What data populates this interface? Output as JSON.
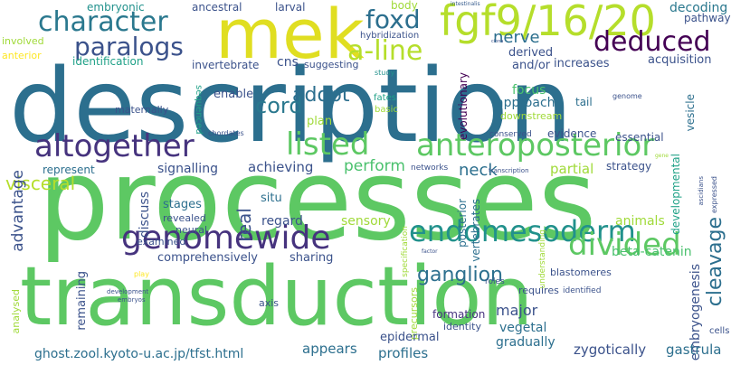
{
  "background": "#ffffff",
  "palette": [
    "#440154",
    "#46327e",
    "#365c8d",
    "#277f8e",
    "#1fa187",
    "#4ac16d",
    "#a0da39",
    "#fde725"
  ],
  "words": [
    {
      "text": "description"
    },
    {
      "text": "processes"
    },
    {
      "text": "transduction"
    },
    {
      "text": "mek"
    },
    {
      "text": "fgf9/16/20"
    },
    {
      "text": "character"
    },
    {
      "text": "foxd"
    },
    {
      "text": "paralogs"
    },
    {
      "text": "deduced"
    },
    {
      "text": "a-line"
    },
    {
      "text": "nerve"
    },
    {
      "text": "altogether"
    },
    {
      "text": "listed"
    },
    {
      "text": "anteroposterior"
    },
    {
      "text": "genomewide"
    },
    {
      "text": "endomesoderm"
    },
    {
      "text": "divided"
    },
    {
      "text": "adopt"
    },
    {
      "text": "cord"
    },
    {
      "text": "ganglion"
    },
    {
      "text": "visceral"
    },
    {
      "text": "advantage"
    },
    {
      "text": "cleavage"
    },
    {
      "text": "embryonic"
    },
    {
      "text": "ancestral"
    },
    {
      "text": "larval"
    },
    {
      "text": "body"
    },
    {
      "text": "decoding"
    },
    {
      "text": "pathway"
    },
    {
      "text": "intestinalis"
    },
    {
      "text": "hybridization"
    },
    {
      "text": "derived"
    },
    {
      "text": "involved"
    },
    {
      "text": "anterior"
    },
    {
      "text": "identification"
    },
    {
      "text": "invertebrate"
    },
    {
      "text": "cns"
    },
    {
      "text": "suggesting"
    },
    {
      "text": "study"
    },
    {
      "text": "and/or"
    },
    {
      "text": "increases"
    },
    {
      "text": "acquisition"
    },
    {
      "text": "enable"
    },
    {
      "text": "maternally"
    },
    {
      "text": "sequenced"
    },
    {
      "text": "fates"
    },
    {
      "text": "basic"
    },
    {
      "text": "focus"
    },
    {
      "text": "approach"
    },
    {
      "text": "downstream"
    },
    {
      "text": "tail"
    },
    {
      "text": "genome"
    },
    {
      "text": "plan"
    },
    {
      "text": "chordates"
    },
    {
      "text": "conserved"
    },
    {
      "text": "evidence"
    },
    {
      "text": "essential"
    },
    {
      "text": "evolutionary"
    },
    {
      "text": "vesicle"
    },
    {
      "text": "represent"
    },
    {
      "text": "signalling"
    },
    {
      "text": "achieving"
    },
    {
      "text": "perform"
    },
    {
      "text": "neck"
    },
    {
      "text": "networks"
    },
    {
      "text": "transcription"
    },
    {
      "text": "partial"
    },
    {
      "text": "strategy"
    },
    {
      "text": "gene"
    },
    {
      "text": "stages"
    },
    {
      "text": "discuss"
    },
    {
      "text": "situ"
    },
    {
      "text": "vertebrates"
    },
    {
      "text": "posterior"
    },
    {
      "text": "developmental"
    },
    {
      "text": "real"
    },
    {
      "text": "revealed"
    },
    {
      "text": "neural"
    },
    {
      "text": "regard"
    },
    {
      "text": "sensory"
    },
    {
      "text": "examined"
    },
    {
      "text": "specification"
    },
    {
      "text": "animals"
    },
    {
      "text": "understanding"
    },
    {
      "text": "factor"
    },
    {
      "text": "ascidians"
    },
    {
      "text": "expressed"
    },
    {
      "text": "beta-catenin"
    },
    {
      "text": "comprehensively"
    },
    {
      "text": "sharing"
    },
    {
      "text": "blastomeres"
    },
    {
      "text": "embryogenesis"
    },
    {
      "text": "play"
    },
    {
      "text": "remaining"
    },
    {
      "text": "roles"
    },
    {
      "text": "requires"
    },
    {
      "text": "identified"
    },
    {
      "text": "precursors"
    },
    {
      "text": "development"
    },
    {
      "text": "embryos"
    },
    {
      "text": "axis"
    },
    {
      "text": "formation"
    },
    {
      "text": "major"
    },
    {
      "text": "analysed"
    },
    {
      "text": "identity"
    },
    {
      "text": "vegetal"
    },
    {
      "text": "cells"
    },
    {
      "text": "epidermal"
    },
    {
      "text": "gradually"
    },
    {
      "text": "ghost.zool.kyoto-u.ac.jp/tfst.html"
    },
    {
      "text": "appears"
    },
    {
      "text": "profiles"
    },
    {
      "text": "zygotically"
    },
    {
      "text": "gastrula"
    },
    {
      "text": "ciona"
    }
  ]
}
